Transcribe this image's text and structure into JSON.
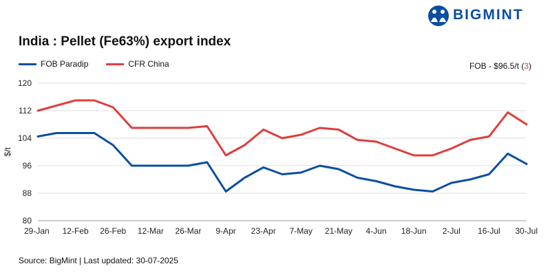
{
  "brand": {
    "name": "BIGMINT",
    "logo_icon": "people-circle-icon",
    "color": "#0b4ea2"
  },
  "title": "India : Pellet (Fe63%) export index",
  "fob_note": {
    "prefix": "FOB - $96.5/t (",
    "count": "3",
    "suffix": ")"
  },
  "source": "Source: BigMint | Last updated: 30-07-2025",
  "chart_data": {
    "type": "line",
    "title": "India : Pellet (Fe63%) export index",
    "ylabel": "$/t",
    "ylim": [
      80,
      120
    ],
    "yticks": [
      80,
      88,
      96,
      104,
      112,
      120
    ],
    "x_tick_labels": [
      "29-Jan",
      "12-Feb",
      "26-Feb",
      "12-Mar",
      "26-Mar",
      "9-Apr",
      "23-Apr",
      "7-May",
      "21-May",
      "4-Jun",
      "18-Jun",
      "2-Jul",
      "16-Jul",
      "30-Jul"
    ],
    "x": [
      "29-Jan",
      "5-Feb",
      "12-Feb",
      "19-Feb",
      "26-Feb",
      "5-Mar",
      "12-Mar",
      "19-Mar",
      "26-Mar",
      "2-Apr",
      "9-Apr",
      "16-Apr",
      "23-Apr",
      "30-Apr",
      "7-May",
      "14-May",
      "21-May",
      "28-May",
      "4-Jun",
      "11-Jun",
      "18-Jun",
      "25-Jun",
      "2-Jul",
      "9-Jul",
      "16-Jul",
      "23-Jul",
      "30-Jul"
    ],
    "grid": true,
    "legend_position": "top-left",
    "series": [
      {
        "name": "FOB Paradip",
        "color": "#0b4ea2",
        "values": [
          104.5,
          105.5,
          105.5,
          105.5,
          102,
          96,
          96,
          96,
          96,
          97,
          88.5,
          92.5,
          95.5,
          93.5,
          94,
          96,
          95,
          92.5,
          91.5,
          90,
          89,
          88.5,
          91,
          92,
          93.5,
          99.5,
          96.5
        ]
      },
      {
        "name": "CFR China",
        "color": "#e03c3c",
        "values": [
          112,
          113.5,
          115,
          115,
          113,
          107,
          107,
          107,
          107,
          107.5,
          99,
          102,
          106.5,
          104,
          105,
          107,
          106.5,
          103.5,
          103,
          101,
          99,
          99,
          101,
          103.5,
          104.5,
          111.5,
          108
        ]
      }
    ]
  }
}
